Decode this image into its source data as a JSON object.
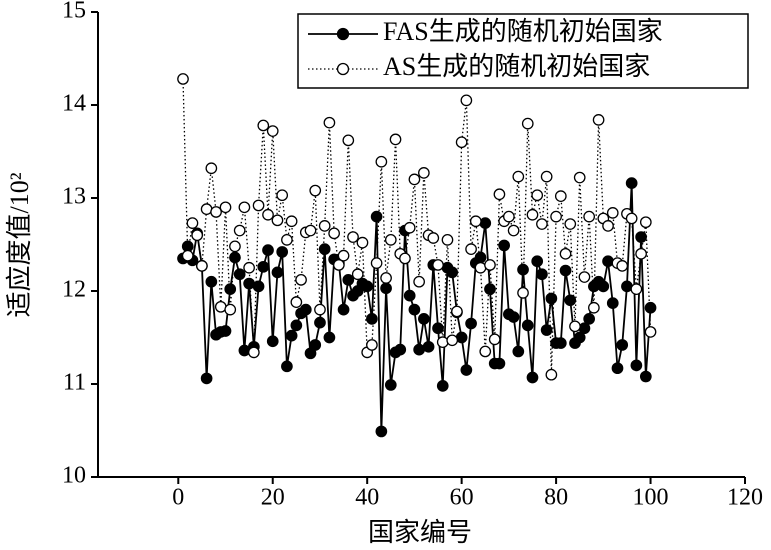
{
  "chart_data": {
    "type": "line",
    "xlabel": "国家编号",
    "ylabel": "适应度值/10²",
    "xlim": [
      -17,
      120
    ],
    "ylim": [
      10,
      15
    ],
    "xticks": [
      0,
      20,
      40,
      60,
      80,
      100,
      120
    ],
    "yticks": [
      10,
      11,
      12,
      13,
      14,
      15
    ],
    "legend": "upper right",
    "x": [
      1,
      2,
      3,
      4,
      5,
      6,
      7,
      8,
      9,
      10,
      11,
      12,
      13,
      14,
      15,
      16,
      17,
      18,
      19,
      20,
      21,
      22,
      23,
      24,
      25,
      26,
      27,
      28,
      29,
      30,
      31,
      32,
      33,
      34,
      35,
      36,
      37,
      38,
      39,
      40,
      41,
      42,
      43,
      44,
      45,
      46,
      47,
      48,
      49,
      50,
      51,
      52,
      53,
      54,
      55,
      56,
      57,
      58,
      59,
      60,
      61,
      62,
      63,
      64,
      65,
      66,
      67,
      68,
      69,
      70,
      71,
      72,
      73,
      74,
      75,
      76,
      77,
      78,
      79,
      80,
      81,
      82,
      83,
      84,
      85,
      86,
      87,
      88,
      89,
      90,
      91,
      92,
      93,
      94,
      95,
      96,
      97,
      98,
      99,
      100
    ],
    "series": [
      {
        "name": "FAS生成的随机初始国家",
        "color": "#000000",
        "linestyle": "solid",
        "marker": "filled",
        "values": [
          12.35,
          12.48,
          12.33,
          12.62,
          12.27,
          11.06,
          12.1,
          11.53,
          11.56,
          11.57,
          12.02,
          12.36,
          12.18,
          11.36,
          12.08,
          11.4,
          12.05,
          12.26,
          12.44,
          11.46,
          12.2,
          12.42,
          11.19,
          11.52,
          11.63,
          11.76,
          11.8,
          11.33,
          11.42,
          11.66,
          12.45,
          11.5,
          12.34,
          12.3,
          11.8,
          12.12,
          11.95,
          12.0,
          12.08,
          12.05,
          11.7,
          12.8,
          10.49,
          12.03,
          10.99,
          11.34,
          11.37,
          12.65,
          11.95,
          11.8,
          11.37,
          11.7,
          11.4,
          12.28,
          11.6,
          10.98,
          12.25,
          12.2,
          11.77,
          11.5,
          11.15,
          11.65,
          12.3,
          12.36,
          12.73,
          12.02,
          11.22,
          11.22,
          12.49,
          11.75,
          11.72,
          11.35,
          12.23,
          11.63,
          11.07,
          12.32,
          12.18,
          11.58,
          11.92,
          11.44,
          11.44,
          12.22,
          11.9,
          11.44,
          11.5,
          11.6,
          11.7,
          12.05,
          12.1,
          12.05,
          12.32,
          11.87,
          11.17,
          11.42,
          12.05,
          13.16,
          11.2,
          12.58,
          11.08,
          11.82
        ]
      },
      {
        "name": "AS生成的随机初始国家",
        "color": "#000000",
        "linestyle": "dotted",
        "marker": "open",
        "values": [
          14.28,
          12.38,
          12.73,
          12.6,
          12.27,
          12.88,
          13.32,
          12.85,
          11.83,
          12.9,
          11.8,
          12.48,
          12.65,
          12.9,
          12.25,
          11.34,
          12.92,
          13.78,
          12.82,
          13.72,
          12.76,
          13.03,
          12.55,
          12.75,
          11.88,
          12.12,
          12.63,
          12.65,
          13.08,
          11.8,
          12.7,
          13.81,
          12.62,
          12.28,
          12.38,
          13.62,
          12.58,
          12.18,
          12.52,
          11.34,
          11.42,
          12.3,
          13.39,
          12.14,
          12.55,
          13.63,
          12.4,
          12.35,
          12.68,
          13.2,
          12.1,
          13.27,
          12.6,
          12.57,
          12.28,
          11.45,
          12.55,
          11.47,
          11.78,
          13.6,
          14.05,
          12.45,
          12.75,
          12.25,
          11.35,
          12.28,
          11.48,
          13.04,
          12.75,
          12.8,
          12.65,
          13.23,
          11.98,
          13.8,
          12.82,
          13.03,
          12.72,
          13.23,
          11.1,
          12.8,
          13.02,
          12.4,
          12.72,
          11.62,
          13.22,
          12.15,
          12.8,
          11.82,
          13.84,
          12.78,
          12.7,
          12.84,
          12.3,
          12.27,
          12.83,
          12.78,
          12.02,
          12.4,
          12.74,
          11.56
        ]
      }
    ]
  }
}
